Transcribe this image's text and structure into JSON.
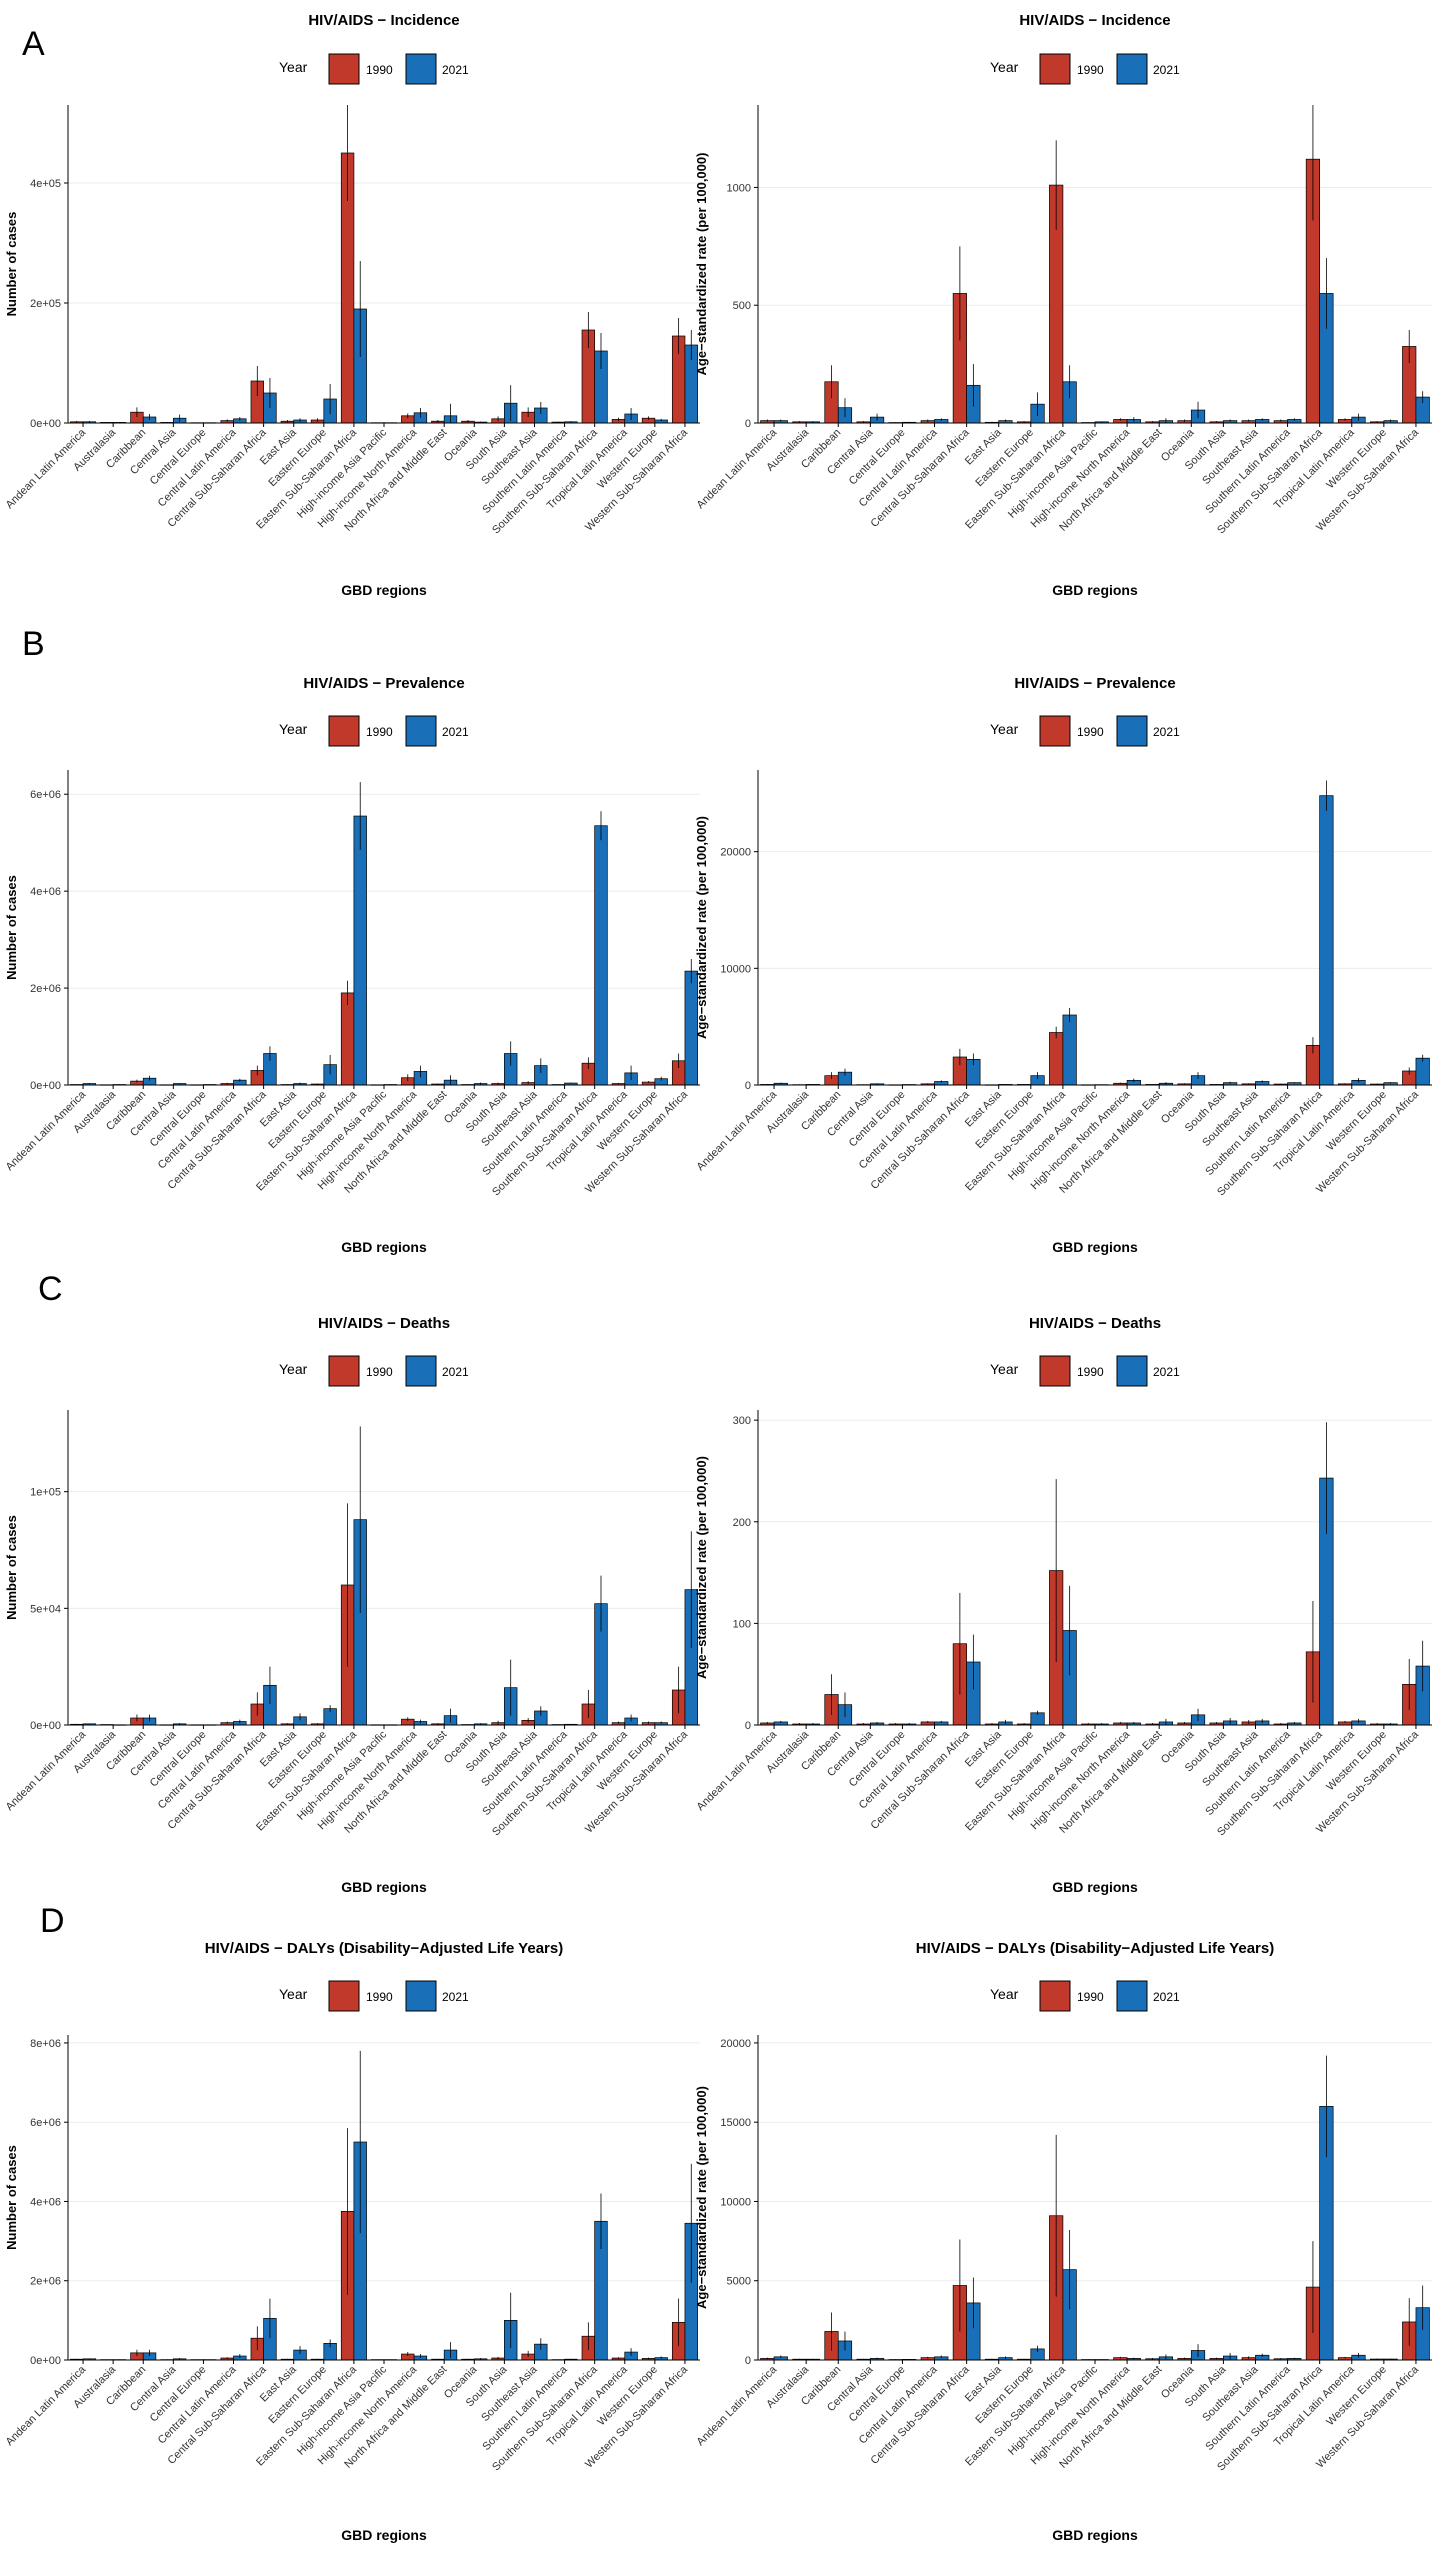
{
  "figure": {
    "panel_letters": [
      "A",
      "B",
      "C",
      "D"
    ],
    "colors": {
      "y1990": "#c0392b",
      "y2021": "#1a70b8",
      "axis": "#000000",
      "grid": "#ebebeb",
      "errorbar": "#000000"
    },
    "regions": [
      "Andean Latin America",
      "Australasia",
      "Caribbean",
      "Central Asia",
      "Central Europe",
      "Central Latin America",
      "Central Sub-Saharan Africa",
      "East Asia",
      "Eastern Europe",
      "Eastern Sub-Saharan Africa",
      "High-income Asia Pacific",
      "High-income North America",
      "North Africa and Middle East",
      "Oceania",
      "South Asia",
      "Southeast Asia",
      "Southern Latin America",
      "Southern Sub-Saharan Africa",
      "Tropical Latin America",
      "Western Europe",
      "Western Sub-Saharan Africa"
    ]
  },
  "chart_data": [
    {
      "type": "bar",
      "panel": "A",
      "title": "HIV/AIDS − Incidence",
      "xlabel": "GBD regions",
      "ylabel": "Number of cases",
      "legend_title": "Year",
      "legend": [
        "1990",
        "2021"
      ],
      "ylim": [
        0,
        530000
      ],
      "yticks": [
        0,
        200000,
        400000
      ],
      "ytick_labels": [
        "0e+00",
        "2e+05",
        "4e+05"
      ],
      "series": [
        {
          "name": "1990",
          "values": [
            2000,
            1000,
            18000,
            1000,
            500,
            4000,
            70000,
            3000,
            5000,
            450000,
            500,
            12000,
            3000,
            3000,
            7000,
            18000,
            1500,
            155000,
            6000,
            8000,
            145000
          ],
          "errors": [
            1500,
            500,
            8000,
            700,
            300,
            2000,
            25000,
            2000,
            3000,
            80000,
            300,
            4000,
            2000,
            2000,
            4000,
            8000,
            800,
            30000,
            3000,
            3000,
            30000
          ]
        },
        {
          "name": "2021",
          "values": [
            2000,
            1000,
            10000,
            8000,
            500,
            7000,
            50000,
            5000,
            40000,
            190000,
            500,
            17000,
            12000,
            1500,
            33000,
            25000,
            2000,
            120000,
            15000,
            5000,
            130000
          ],
          "errors": [
            1500,
            500,
            5000,
            6000,
            300,
            3000,
            25000,
            3000,
            25000,
            80000,
            300,
            8000,
            20000,
            1000,
            30000,
            10000,
            1000,
            30000,
            10000,
            2000,
            25000
          ]
        }
      ]
    },
    {
      "type": "bar",
      "panel": "A",
      "title": "HIV/AIDS − Incidence",
      "xlabel": "GBD regions",
      "ylabel": "Age−standardized rate (per 100,000)",
      "legend_title": "Year",
      "legend": [
        "1990",
        "2021"
      ],
      "ylim": [
        0,
        1350
      ],
      "yticks": [
        0,
        500,
        1000
      ],
      "ytick_labels": [
        "0",
        "500",
        "1000"
      ],
      "series": [
        {
          "name": "1990",
          "values": [
            10,
            5,
            175,
            5,
            2,
            10,
            550,
            3,
            5,
            1010,
            2,
            15,
            5,
            10,
            5,
            10,
            10,
            1120,
            15,
            5,
            325
          ],
          "errors": [
            5,
            3,
            70,
            3,
            1,
            5,
            200,
            2,
            3,
            190,
            1,
            5,
            3,
            5,
            3,
            5,
            5,
            260,
            5,
            3,
            70
          ]
        },
        {
          "name": "2021",
          "values": [
            10,
            5,
            65,
            25,
            3,
            15,
            160,
            10,
            80,
            175,
            5,
            15,
            10,
            55,
            10,
            15,
            15,
            550,
            25,
            10,
            110
          ],
          "errors": [
            5,
            3,
            40,
            15,
            2,
            5,
            90,
            5,
            50,
            70,
            2,
            10,
            10,
            35,
            5,
            5,
            5,
            150,
            15,
            5,
            25
          ]
        }
      ]
    },
    {
      "type": "bar",
      "panel": "B",
      "title": "HIV/AIDS − Prevalence",
      "xlabel": "GBD regions",
      "ylabel": "Number of cases",
      "legend_title": "Year",
      "legend": [
        "1990",
        "2021"
      ],
      "ylim": [
        0,
        6500000
      ],
      "yticks": [
        0,
        2000000,
        4000000,
        6000000
      ],
      "ytick_labels": [
        "0e+00",
        "2e+06",
        "4e+06",
        "6e+06"
      ],
      "series": [
        {
          "name": "1990",
          "values": [
            10000,
            5000,
            80000,
            5000,
            5000,
            30000,
            300000,
            10000,
            20000,
            1900000,
            5000,
            150000,
            20000,
            10000,
            30000,
            50000,
            10000,
            450000,
            30000,
            60000,
            500000
          ],
          "errors": [
            5000,
            3000,
            30000,
            3000,
            3000,
            15000,
            100000,
            5000,
            10000,
            250000,
            3000,
            70000,
            10000,
            5000,
            20000,
            30000,
            5000,
            120000,
            15000,
            20000,
            150000
          ]
        },
        {
          "name": "2021",
          "values": [
            30000,
            10000,
            140000,
            30000,
            10000,
            100000,
            650000,
            30000,
            420000,
            5550000,
            10000,
            280000,
            100000,
            30000,
            650000,
            400000,
            40000,
            5350000,
            250000,
            130000,
            2350000
          ],
          "errors": [
            10000,
            5000,
            50000,
            10000,
            5000,
            30000,
            150000,
            20000,
            200000,
            700000,
            5000,
            120000,
            100000,
            20000,
            250000,
            150000,
            10000,
            300000,
            150000,
            40000,
            250000
          ]
        }
      ]
    },
    {
      "type": "bar",
      "panel": "B",
      "title": "HIV/AIDS − Prevalence",
      "xlabel": "GBD regions",
      "ylabel": "Age−standardized rate (per 100,000)",
      "legend_title": "Year",
      "legend": [
        "1990",
        "2021"
      ],
      "ylim": [
        0,
        27000
      ],
      "yticks": [
        0,
        10000,
        20000
      ],
      "ytick_labels": [
        "0",
        "10000",
        "20000"
      ],
      "series": [
        {
          "name": "1990",
          "values": [
            50,
            30,
            800,
            30,
            20,
            100,
            2400,
            20,
            50,
            4500,
            20,
            150,
            50,
            100,
            50,
            100,
            80,
            3400,
            100,
            80,
            1200
          ],
          "errors": [
            30,
            20,
            300,
            20,
            10,
            50,
            700,
            10,
            30,
            500,
            10,
            50,
            30,
            50,
            30,
            50,
            40,
            700,
            50,
            40,
            300
          ]
        },
        {
          "name": "2021",
          "values": [
            150,
            50,
            1100,
            100,
            40,
            300,
            2200,
            50,
            800,
            6000,
            30,
            400,
            150,
            800,
            200,
            300,
            200,
            24800,
            400,
            200,
            2300
          ],
          "errors": [
            50,
            20,
            300,
            50,
            20,
            100,
            500,
            30,
            300,
            600,
            20,
            150,
            100,
            300,
            80,
            100,
            50,
            1300,
            200,
            60,
            300
          ]
        }
      ]
    },
    {
      "type": "bar",
      "panel": "C",
      "title": "HIV/AIDS − Deaths",
      "xlabel": "GBD regions",
      "ylabel": "Number of cases",
      "legend_title": "Year",
      "legend": [
        "1990",
        "2021"
      ],
      "ylim": [
        0,
        135000
      ],
      "yticks": [
        0,
        50000,
        100000
      ],
      "ytick_labels": [
        "0e+00",
        "5e+04",
        "1e+05"
      ],
      "series": [
        {
          "name": "1990",
          "values": [
            300,
            200,
            3000,
            100,
            100,
            1000,
            9000,
            500,
            500,
            60000,
            100,
            2500,
            500,
            200,
            1000,
            2000,
            200,
            9000,
            1000,
            1000,
            15000
          ],
          "errors": [
            200,
            100,
            1500,
            100,
            100,
            500,
            5000,
            300,
            300,
            35000,
            100,
            800,
            300,
            100,
            800,
            1000,
            100,
            6000,
            500,
            500,
            10000
          ]
        },
        {
          "name": "2021",
          "values": [
            500,
            100,
            3000,
            500,
            100,
            1500,
            17000,
            3500,
            7000,
            88000,
            100,
            1500,
            4000,
            500,
            16000,
            6000,
            300,
            52000,
            3000,
            1000,
            58000
          ],
          "errors": [
            200,
            100,
            1500,
            300,
            100,
            800,
            8000,
            1500,
            1500,
            40000,
            100,
            800,
            3000,
            300,
            12000,
            2000,
            100,
            12000,
            1500,
            500,
            25000
          ]
        }
      ]
    },
    {
      "type": "bar",
      "panel": "C",
      "title": "HIV/AIDS − Deaths",
      "xlabel": "GBD regions",
      "ylabel": "Age−standardized rate (per 100,000)",
      "legend_title": "Year",
      "legend": [
        "1990",
        "2021"
      ],
      "ylim": [
        0,
        310
      ],
      "yticks": [
        0,
        100,
        200,
        300
      ],
      "ytick_labels": [
        "0",
        "100",
        "200",
        "300"
      ],
      "series": [
        {
          "name": "1990",
          "values": [
            2,
            1,
            30,
            1,
            1,
            3,
            80,
            1,
            1,
            152,
            1,
            2,
            1,
            2,
            2,
            3,
            1,
            72,
            3,
            1,
            40
          ],
          "errors": [
            1,
            1,
            20,
            1,
            1,
            1,
            50,
            1,
            1,
            90,
            1,
            1,
            1,
            1,
            1,
            2,
            1,
            50,
            1,
            1,
            25
          ]
        },
        {
          "name": "2021",
          "values": [
            3,
            1,
            20,
            2,
            1,
            3,
            62,
            3,
            12,
            93,
            1,
            2,
            3,
            10,
            4,
            4,
            2,
            243,
            4,
            1,
            58
          ],
          "errors": [
            1,
            1,
            12,
            1,
            1,
            1,
            27,
            2,
            2,
            44,
            1,
            1,
            3,
            6,
            3,
            2,
            1,
            55,
            2,
            1,
            25
          ]
        }
      ]
    },
    {
      "type": "bar",
      "panel": "D",
      "title": "HIV/AIDS − DALYs (Disability−Adjusted Life Years)",
      "xlabel": "GBD regions",
      "ylabel": "Number of cases",
      "legend_title": "Year",
      "legend": [
        "1990",
        "2021"
      ],
      "ylim": [
        0,
        8200000
      ],
      "yticks": [
        0,
        2000000,
        4000000,
        6000000,
        8000000
      ],
      "ytick_labels": [
        "0e+00",
        "2e+06",
        "4e+06",
        "6e+06",
        "8e+06"
      ],
      "series": [
        {
          "name": "1990",
          "values": [
            20000,
            10000,
            180000,
            10000,
            10000,
            50000,
            550000,
            20000,
            20000,
            3750000,
            10000,
            150000,
            20000,
            20000,
            50000,
            150000,
            10000,
            600000,
            50000,
            40000,
            950000
          ],
          "errors": [
            10000,
            5000,
            80000,
            5000,
            5000,
            20000,
            300000,
            10000,
            10000,
            2100000,
            5000,
            50000,
            10000,
            10000,
            30000,
            80000,
            5000,
            350000,
            20000,
            20000,
            600000
          ]
        },
        {
          "name": "2021",
          "values": [
            30000,
            10000,
            180000,
            30000,
            10000,
            100000,
            1050000,
            250000,
            420000,
            5500000,
            10000,
            100000,
            250000,
            30000,
            1000000,
            400000,
            20000,
            3500000,
            200000,
            60000,
            3450000
          ],
          "errors": [
            10000,
            5000,
            80000,
            20000,
            5000,
            50000,
            500000,
            100000,
            100000,
            2300000,
            5000,
            50000,
            200000,
            20000,
            700000,
            150000,
            10000,
            700000,
            100000,
            30000,
            1500000
          ]
        }
      ]
    },
    {
      "type": "bar",
      "panel": "D",
      "title": "HIV/AIDS − DALYs (Disability−Adjusted Life Years)",
      "xlabel": "GBD regions",
      "ylabel": "Age−standardized rate (per 100,000)",
      "legend_title": "Year",
      "legend": [
        "1990",
        "2021"
      ],
      "ylim": [
        0,
        20500
      ],
      "yticks": [
        0,
        5000,
        10000,
        15000,
        20000
      ],
      "ytick_labels": [
        "0",
        "5000",
        "10000",
        "15000",
        "20000"
      ],
      "series": [
        {
          "name": "1990",
          "values": [
            100,
            50,
            1800,
            50,
            30,
            150,
            4700,
            50,
            50,
            9100,
            30,
            150,
            80,
            100,
            100,
            150,
            80,
            4600,
            150,
            60,
            2400
          ],
          "errors": [
            50,
            30,
            1200,
            30,
            20,
            50,
            2900,
            30,
            30,
            5100,
            20,
            50,
            50,
            50,
            50,
            80,
            40,
            2900,
            50,
            30,
            1500
          ]
        },
        {
          "name": "2021",
          "values": [
            200,
            50,
            1200,
            100,
            40,
            200,
            3600,
            150,
            700,
            5700,
            30,
            100,
            200,
            600,
            250,
            300,
            100,
            16000,
            300,
            60,
            3300
          ],
          "errors": [
            80,
            30,
            600,
            50,
            20,
            80,
            1600,
            80,
            200,
            2500,
            20,
            50,
            150,
            400,
            200,
            100,
            40,
            3200,
            150,
            30,
            1400
          ]
        }
      ]
    }
  ]
}
